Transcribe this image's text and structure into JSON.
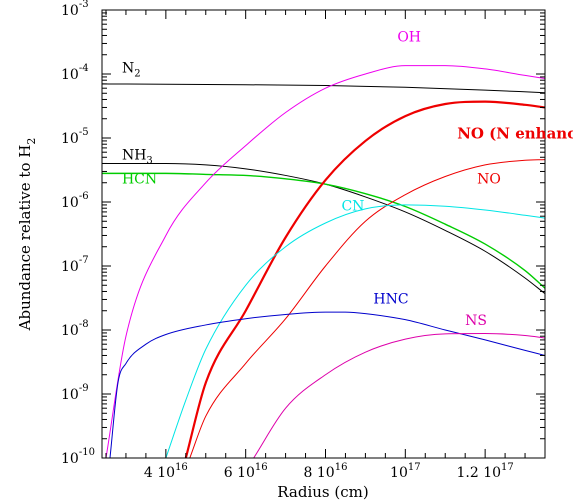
{
  "chart_data": {
    "type": "line",
    "title": "",
    "xlabel": "Radius (cm)",
    "ylabel": "Abundance relative to H2",
    "ylabel_parts": {
      "main": "Abundance relative to H",
      "sub": "2"
    },
    "x_scale": "linear",
    "y_scale": "log",
    "xlim": [
      2.4e+16,
      1.35e+17
    ],
    "ylim": [
      1e-10,
      0.001
    ],
    "x_ticks": [
      {
        "value": 4e+16,
        "mantissa": "4",
        "base": "10",
        "exp": "16"
      },
      {
        "value": 6e+16,
        "mantissa": "6",
        "base": "10",
        "exp": "16"
      },
      {
        "value": 8e+16,
        "mantissa": "8",
        "base": "10",
        "exp": "16"
      },
      {
        "value": 1e+17,
        "mantissa": "",
        "base": "10",
        "exp": "17"
      },
      {
        "value": 1.2e+17,
        "mantissa": "1.2",
        "base": "10",
        "exp": "17"
      }
    ],
    "y_ticks": [
      {
        "value": -10,
        "base": "10",
        "exp": "-10"
      },
      {
        "value": -9,
        "base": "10",
        "exp": "-9"
      },
      {
        "value": -8,
        "base": "10",
        "exp": "-8"
      },
      {
        "value": -7,
        "base": "10",
        "exp": "-7"
      },
      {
        "value": -6,
        "base": "10",
        "exp": "-6"
      },
      {
        "value": -5,
        "base": "10",
        "exp": "-5"
      },
      {
        "value": -4,
        "base": "10",
        "exp": "-4"
      },
      {
        "value": -3,
        "base": "10",
        "exp": "-3"
      }
    ],
    "grid": false,
    "legend": "labels placed next to curves",
    "series": [
      {
        "name": "N2",
        "label_main": "N",
        "label_sub": "2",
        "color": "#000000",
        "width": 1,
        "x": [
          2.4e+16,
          6e+16,
          8e+16,
          1e+17,
          1.2e+17,
          1.35e+17
        ],
        "y": [
          7e-05,
          6.8e-05,
          6.6e-05,
          6.2e-05,
          5.6e-05,
          5.1e-05
        ]
      },
      {
        "name": "NH3",
        "label_main": "NH",
        "label_sub": "3",
        "color": "#000000",
        "width": 1,
        "x": [
          2.4e+16,
          4e+16,
          5e+16,
          6e+16,
          7e+16,
          8e+16,
          9e+16,
          1e+17,
          1.1e+17,
          1.2e+17,
          1.3e+17,
          1.35e+17
        ],
        "y": [
          4e-06,
          4e-06,
          3.8e-06,
          3.3e-06,
          2.6e-06,
          1.9e-06,
          1.2e-06,
          7e-07,
          3.6e-07,
          1.7e-07,
          6.5e-08,
          3.7e-08
        ]
      },
      {
        "name": "HCN",
        "label_main": "HCN",
        "label_sub": "",
        "color": "#00cc00",
        "width": 1.4,
        "x": [
          2.4e+16,
          4e+16,
          5e+16,
          6e+16,
          7e+16,
          8e+16,
          9e+16,
          1e+17,
          1.1e+17,
          1.2e+17,
          1.3e+17,
          1.35e+17
        ],
        "y": [
          2.8e-06,
          2.8e-06,
          2.7e-06,
          2.6e-06,
          2.3e-06,
          1.9e-06,
          1.35e-06,
          8.5e-07,
          4.5e-07,
          2.2e-07,
          8.5e-08,
          4.5e-08
        ]
      },
      {
        "name": "OH",
        "label_main": "OH",
        "label_sub": "",
        "color": "#ee00ee",
        "width": 1,
        "x": [
          2.5e+16,
          3e+16,
          4e+16,
          5e+16,
          6e+16,
          7e+16,
          8e+16,
          9e+16,
          1e+17,
          1.1e+17,
          1.2e+17,
          1.3e+17,
          1.35e+17
        ],
        "y": [
          1e-10,
          8e-09,
          3e-07,
          2e-06,
          7.6e-06,
          2.5e-05,
          6e-05,
          0.0001,
          0.000135,
          0.000135,
          0.00012,
          9.5e-05,
          8.5e-05
        ]
      },
      {
        "name": "NO (N enhanced)",
        "label_main": "NO (N enhanced)",
        "label_sub": "",
        "color": "#ee0000",
        "width": 2.2,
        "x": [
          4.5e+16,
          5e+16,
          6e+16,
          7e+16,
          8e+16,
          9e+16,
          1e+17,
          1.1e+17,
          1.2e+17,
          1.3e+17,
          1.35e+17
        ],
        "y": [
          1e-10,
          1.5e-09,
          2e-08,
          2.8e-07,
          2.2e-06,
          9e-06,
          2.2e-05,
          3.4e-05,
          3.7e-05,
          3.3e-05,
          3e-05
        ]
      },
      {
        "name": "NO",
        "label_main": "NO",
        "label_sub": "",
        "color": "#ee0000",
        "width": 1,
        "x": [
          4.6e+16,
          5e+16,
          6e+16,
          7e+16,
          8e+16,
          9e+16,
          1e+17,
          1.1e+17,
          1.2e+17,
          1.3e+17,
          1.35e+17
        ],
        "y": [
          1e-10,
          4.5e-10,
          3e-09,
          1.5e-08,
          1e-07,
          5e-07,
          1.3e-06,
          2.5e-06,
          3.8e-06,
          4.5e-06,
          4.6e-06
        ]
      },
      {
        "name": "CN",
        "label_main": "CN",
        "label_sub": "",
        "color": "#00e5e5",
        "width": 1,
        "x": [
          4e+16,
          4.5e+16,
          5e+16,
          6e+16,
          7e+16,
          8e+16,
          9e+16,
          1e+17,
          1.1e+17,
          1.2e+17,
          1.3e+17,
          1.35e+17
        ],
        "y": [
          1e-10,
          8e-10,
          5e-09,
          5e-08,
          2e-07,
          4.7e-07,
          7.8e-07,
          9e-07,
          8.6e-07,
          7.5e-07,
          6.2e-07,
          5.6e-07
        ]
      },
      {
        "name": "HNC",
        "label_main": "HNC",
        "label_sub": "",
        "color": "#0000cc",
        "width": 1,
        "x": [
          2.6e+16,
          2.8e+16,
          3e+16,
          3.5e+16,
          4e+16,
          5e+16,
          6e+16,
          7e+16,
          8e+16,
          8.5e+16,
          9e+16,
          1e+17,
          1.1e+17,
          1.2e+17,
          1.3e+17,
          1.35e+17
        ],
        "y": [
          1e-10,
          1.5e-09,
          3e-09,
          6e-09,
          8.5e-09,
          1.2e-08,
          1.5e-08,
          1.75e-08,
          1.9e-08,
          1.9e-08,
          1.8e-08,
          1.45e-08,
          1e-08,
          7e-09,
          4.8e-09,
          4e-09
        ]
      },
      {
        "name": "NS",
        "label_main": "NS",
        "label_sub": "",
        "color": "#dd00aa",
        "width": 1,
        "x": [
          6.2e+16,
          7e+16,
          8e+16,
          9e+16,
          1e+17,
          1.1e+17,
          1.2e+17,
          1.3e+17,
          1.35e+17
        ],
        "y": [
          1e-10,
          6e-10,
          2e-09,
          4.5e-09,
          7.2e-09,
          8.7e-09,
          8.8e-09,
          8.2e-09,
          7.5e-09
        ]
      }
    ],
    "label_positions_data_units": [
      {
        "name": "N2",
        "x": 2.9e+16,
        "y": 0.000105
      },
      {
        "name": "NH3",
        "x": 2.9e+16,
        "y": 4.6e-06
      },
      {
        "name": "HCN",
        "x": 2.9e+16,
        "y": 1.95e-06
      },
      {
        "name": "OH",
        "x": 9.8e+16,
        "y": 0.00032
      },
      {
        "name": "NO (N enhanced)",
        "x": 1.13e+17,
        "y": 9.8e-06
      },
      {
        "name": "NO",
        "x": 1.18e+17,
        "y": 1.95e-06
      },
      {
        "name": "CN",
        "x": 8.4e+16,
        "y": 7.4e-07
      },
      {
        "name": "HNC",
        "x": 9.2e+16,
        "y": 2.6e-08
      },
      {
        "name": "NS",
        "x": 1.15e+17,
        "y": 1.2e-08
      }
    ]
  }
}
